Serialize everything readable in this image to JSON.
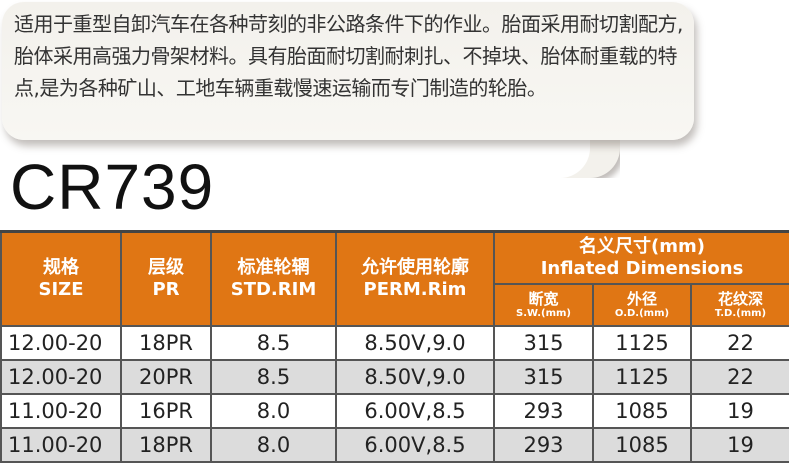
{
  "description": "适用于重型自卸汽车在各种苛刻的非公路条件下的作业。胎面采用耐切割配方,胎体采用高强力骨架材料。具有胎面耐切割耐刺扎、不掉块、胎体耐重载的特点,是为各种矿山、工地车辆重载慢速运输而专门制造的轮胎。",
  "model": "CR739",
  "colors": {
    "header": "#e07614",
    "alt_row": "#dcdcdc"
  },
  "table": {
    "headers": [
      {
        "cn": "规格",
        "en": "SIZE"
      },
      {
        "cn": "层级",
        "en": "PR"
      },
      {
        "cn": "标准轮辋",
        "en": "STD.RIM"
      },
      {
        "cn": "允许使用轮廓",
        "en": "PERM.Rim"
      },
      {
        "cn": "名义尺寸(mm)",
        "en": "Inflated Dimensions"
      }
    ],
    "subheaders": [
      {
        "cn": "断宽",
        "en": "S.W.(mm)"
      },
      {
        "cn": "外径",
        "en": "O.D.(mm)"
      },
      {
        "cn": "花纹深",
        "en": "T.D.(mm)"
      }
    ],
    "rows": [
      [
        "12.00-20",
        "18PR",
        "8.5",
        "8.50V,9.0",
        "315",
        "1125",
        "22"
      ],
      [
        "12.00-20",
        "20PR",
        "8.5",
        "8.50V,9.0",
        "315",
        "1125",
        "22"
      ],
      [
        "11.00-20",
        "16PR",
        "8.0",
        "6.00V,8.5",
        "293",
        "1085",
        "19"
      ],
      [
        "11.00-20",
        "18PR",
        "8.0",
        "6.00V,8.5",
        "293",
        "1085",
        "19"
      ]
    ]
  }
}
